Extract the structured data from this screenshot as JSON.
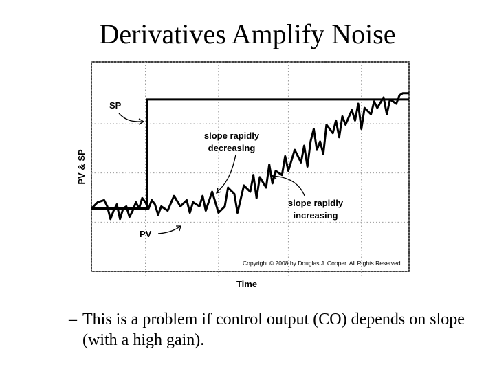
{
  "slide": {
    "title": "Derivatives Amplify Noise",
    "bullet_dash": "–",
    "bullet_text": "This is a problem if control output (CO) depends on slope (with a high gain)."
  },
  "chart_data": {
    "type": "line",
    "title": "",
    "xlabel": "Time",
    "ylabel": "PV & SP",
    "grid": true,
    "legend": "none",
    "xlim": [
      0,
      100
    ],
    "ylim": [
      0,
      100
    ],
    "copyright": "Copyright © 2008 by Douglas J. Cooper. All Rights Reserved.",
    "series": [
      {
        "name": "SP",
        "x": [
          0,
          17.5,
          17.5,
          100
        ],
        "y": [
          30,
          30,
          82,
          82
        ]
      },
      {
        "name": "PV",
        "x": [
          0,
          2,
          4,
          5,
          6,
          7,
          8,
          9,
          10,
          11,
          12,
          13,
          14,
          15,
          16,
          17,
          18,
          19,
          20,
          21,
          22,
          24,
          26,
          28,
          30,
          31,
          32,
          34,
          35,
          36,
          38,
          39,
          40,
          42,
          43,
          45,
          46,
          48,
          50,
          51,
          52,
          53,
          55,
          56,
          57,
          58,
          60,
          61,
          62,
          63,
          64,
          66,
          67,
          68,
          69,
          70,
          71,
          72,
          73,
          74,
          76,
          77,
          78,
          79,
          80,
          82,
          83,
          84,
          85,
          86,
          88,
          89,
          90,
          92,
          93,
          94,
          96,
          97,
          98,
          100
        ],
        "y": [
          30,
          33,
          34,
          31,
          25,
          29,
          32,
          25,
          30,
          31,
          26,
          29,
          33,
          30,
          35,
          33,
          30,
          34,
          32,
          27,
          31,
          29,
          36,
          31,
          34,
          28,
          33,
          31,
          36,
          29,
          38,
          33,
          28,
          31,
          40,
          37,
          28,
          41,
          38,
          46,
          35,
          45,
          40,
          51,
          42,
          48,
          46,
          55,
          48,
          53,
          58,
          52,
          60,
          50,
          62,
          68,
          58,
          62,
          56,
          70,
          66,
          72,
          64,
          74,
          70,
          77,
          72,
          80,
          68,
          78,
          75,
          81,
          78,
          83,
          75,
          82,
          80,
          84,
          85,
          85
        ]
      }
    ],
    "annotations": [
      {
        "text": "SP",
        "target": "SP"
      },
      {
        "text": "PV",
        "target": "PV"
      },
      {
        "text_lines": [
          "slope rapidly",
          "decreasing"
        ]
      },
      {
        "text_lines": [
          "slope rapidly",
          "increasing"
        ]
      }
    ]
  }
}
